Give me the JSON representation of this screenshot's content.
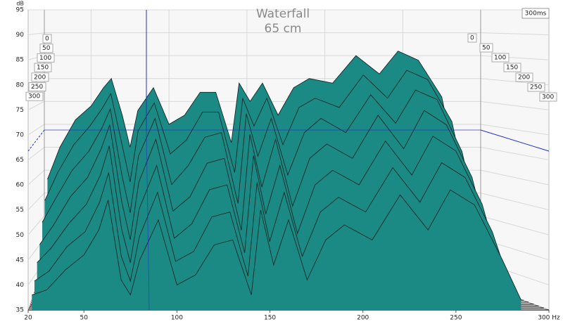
{
  "chart_data": {
    "type": "waterfall",
    "title": "Waterfall",
    "subtitle": "65 cm",
    "y_label": "dB",
    "time_end_label": "300ms",
    "x": [
      22,
      30,
      40,
      50,
      58,
      63,
      70,
      75,
      80,
      90,
      100,
      110,
      120,
      130,
      140,
      145,
      152,
      160,
      170,
      180,
      190,
      205,
      220,
      235,
      247,
      260,
      275,
      285
    ],
    "series": [
      {
        "name": "0",
        "values": [
          58,
          65,
          71,
          74,
          78,
          80,
          72,
          65,
          73,
          78,
          70,
          72,
          77,
          77,
          66,
          79,
          75,
          79,
          72,
          78,
          80,
          79,
          85,
          81,
          86,
          84,
          76,
          60
        ]
      },
      {
        "name": "50",
        "values": [
          54,
          60,
          66,
          70,
          74,
          77,
          66,
          58,
          69,
          75,
          64,
          67,
          73,
          73,
          60,
          76,
          70,
          76,
          66,
          74,
          76,
          74,
          81,
          76,
          82,
          80,
          71,
          55
        ]
      },
      {
        "name": "100",
        "values": [
          50,
          55,
          61,
          65,
          70,
          74,
          60,
          52,
          64,
          72,
          58,
          62,
          68,
          69,
          54,
          73,
          64,
          72,
          60,
          69,
          72,
          69,
          77,
          71,
          78,
          76,
          65,
          50
        ]
      },
      {
        "name": "150",
        "values": [
          46,
          50,
          56,
          60,
          66,
          71,
          55,
          47,
          59,
          68,
          53,
          56,
          63,
          64,
          49,
          69,
          58,
          68,
          54,
          64,
          67,
          64,
          73,
          66,
          74,
          71,
          60,
          46
        ]
      },
      {
        "name": "200",
        "values": [
          43,
          46,
          51,
          55,
          61,
          67,
          50,
          43,
          54,
          63,
          48,
          51,
          58,
          59,
          45,
          65,
          53,
          63,
          49,
          59,
          62,
          59,
          68,
          61,
          69,
          66,
          55,
          42
        ]
      },
      {
        "name": "250",
        "values": [
          40,
          42,
          47,
          50,
          56,
          62,
          45,
          40,
          49,
          58,
          44,
          46,
          53,
          54,
          41,
          60,
          48,
          58,
          45,
          54,
          57,
          54,
          63,
          56,
          64,
          61,
          50,
          39
        ]
      },
      {
        "name": "300",
        "values": [
          38,
          39,
          43,
          46,
          51,
          57,
          41,
          38,
          45,
          53,
          40,
          42,
          48,
          49,
          38,
          55,
          44,
          53,
          41,
          49,
          52,
          49,
          58,
          51,
          59,
          56,
          45,
          37
        ]
      }
    ],
    "color": "#1c8a84",
    "edge_color": "#0f2b29",
    "xlim": [
      20,
      300
    ],
    "xticks": [
      20,
      50,
      100,
      150,
      200,
      250,
      {
        "value": 300,
        "label": "300 Hz"
      }
    ],
    "ylim": [
      35,
      95
    ],
    "yticks": [
      35,
      40,
      45,
      50,
      55,
      60,
      65,
      70,
      75,
      80,
      85,
      90,
      95
    ],
    "grid": true
  }
}
